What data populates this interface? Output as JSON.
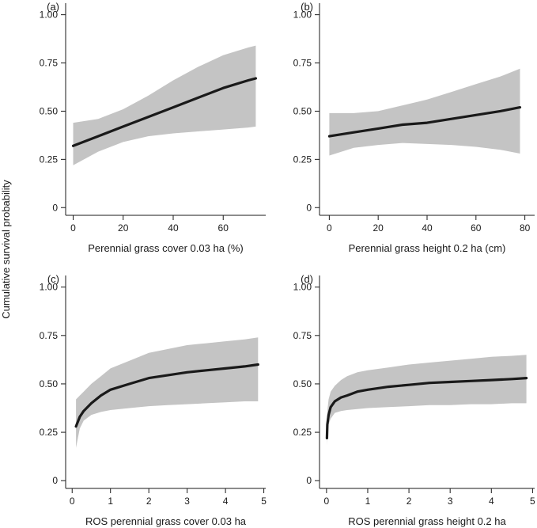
{
  "figure": {
    "ylabel": "Cumulative survival probability"
  },
  "chart_data": [
    {
      "type": "line",
      "panel_label": "(a)",
      "xlabel": "Perennial grass cover 0.03 ha (%)",
      "xlim": [
        -3,
        77
      ],
      "ylim": [
        -0.04,
        1.06
      ],
      "xticks": [
        0,
        20,
        40,
        60
      ],
      "yticks": [
        0,
        0.25,
        0.5,
        0.75,
        1.0
      ],
      "ytick_labels": [
        "0",
        "0.25",
        "0.50",
        "0.75",
        "1.00"
      ],
      "x": [
        0,
        10,
        20,
        30,
        40,
        50,
        60,
        70,
        73
      ],
      "y": [
        0.32,
        0.37,
        0.42,
        0.47,
        0.52,
        0.57,
        0.62,
        0.66,
        0.67
      ],
      "lower": [
        0.22,
        0.29,
        0.34,
        0.37,
        0.385,
        0.395,
        0.405,
        0.415,
        0.42
      ],
      "upper": [
        0.44,
        0.46,
        0.51,
        0.58,
        0.66,
        0.73,
        0.79,
        0.83,
        0.84
      ]
    },
    {
      "type": "line",
      "panel_label": "(b)",
      "xlabel": "Perennial grass height 0.2 ha (cm)",
      "xlim": [
        -4,
        84
      ],
      "ylim": [
        -0.04,
        1.06
      ],
      "xticks": [
        0,
        20,
        40,
        60,
        80
      ],
      "yticks": [
        0,
        0.25,
        0.5,
        0.75,
        1.0
      ],
      "ytick_labels": [
        "0",
        "0.25",
        "0.50",
        "0.75",
        "1.00"
      ],
      "x": [
        0,
        10,
        20,
        30,
        40,
        50,
        60,
        70,
        78
      ],
      "y": [
        0.37,
        0.39,
        0.41,
        0.43,
        0.44,
        0.46,
        0.48,
        0.5,
        0.52
      ],
      "lower": [
        0.27,
        0.31,
        0.325,
        0.335,
        0.33,
        0.325,
        0.315,
        0.3,
        0.28
      ],
      "upper": [
        0.49,
        0.49,
        0.5,
        0.53,
        0.56,
        0.6,
        0.64,
        0.68,
        0.72
      ]
    },
    {
      "type": "line",
      "panel_label": "(c)",
      "xlabel": "ROS perennial grass cover 0.03 ha",
      "xlim": [
        -0.17,
        5.05
      ],
      "ylim": [
        -0.04,
        1.06
      ],
      "xticks": [
        0,
        1,
        2,
        3,
        4,
        5
      ],
      "yticks": [
        0,
        0.25,
        0.5,
        0.75,
        1.0
      ],
      "ytick_labels": [
        "0",
        "0.25",
        "0.50",
        "0.75",
        "1.00"
      ],
      "x": [
        0.1,
        0.2,
        0.3,
        0.5,
        0.75,
        1.0,
        1.5,
        2.0,
        2.5,
        3.0,
        3.5,
        4.0,
        4.5,
        4.85
      ],
      "y": [
        0.28,
        0.33,
        0.36,
        0.4,
        0.44,
        0.47,
        0.5,
        0.53,
        0.545,
        0.56,
        0.57,
        0.58,
        0.59,
        0.6
      ],
      "lower": [
        0.17,
        0.27,
        0.31,
        0.34,
        0.355,
        0.365,
        0.375,
        0.385,
        0.39,
        0.395,
        0.4,
        0.405,
        0.41,
        0.41
      ],
      "upper": [
        0.42,
        0.44,
        0.46,
        0.5,
        0.54,
        0.58,
        0.62,
        0.66,
        0.68,
        0.7,
        0.71,
        0.72,
        0.73,
        0.74
      ]
    },
    {
      "type": "line",
      "panel_label": "(d)",
      "xlabel": "ROS perennial grass height 0.2 ha",
      "xlim": [
        -0.17,
        5.05
      ],
      "ylim": [
        -0.04,
        1.06
      ],
      "xticks": [
        0,
        1,
        2,
        3,
        4,
        5
      ],
      "yticks": [
        0,
        0.25,
        0.5,
        0.75,
        1.0
      ],
      "ytick_labels": [
        "0",
        "0.25",
        "0.50",
        "0.75",
        "1.00"
      ],
      "x": [
        0.01,
        0.02,
        0.05,
        0.1,
        0.2,
        0.35,
        0.5,
        0.75,
        1.0,
        1.5,
        2.0,
        2.5,
        3.0,
        3.5,
        4.0,
        4.5,
        4.85
      ],
      "y": [
        0.22,
        0.29,
        0.34,
        0.38,
        0.41,
        0.43,
        0.44,
        0.46,
        0.47,
        0.485,
        0.495,
        0.505,
        0.51,
        0.515,
        0.52,
        0.525,
        0.53
      ],
      "lower": [
        0.18,
        0.24,
        0.29,
        0.32,
        0.35,
        0.36,
        0.365,
        0.37,
        0.375,
        0.38,
        0.385,
        0.39,
        0.39,
        0.395,
        0.395,
        0.4,
        0.4
      ],
      "upper": [
        0.28,
        0.36,
        0.42,
        0.46,
        0.49,
        0.52,
        0.54,
        0.56,
        0.57,
        0.585,
        0.6,
        0.61,
        0.62,
        0.63,
        0.64,
        0.645,
        0.65
      ]
    }
  ]
}
